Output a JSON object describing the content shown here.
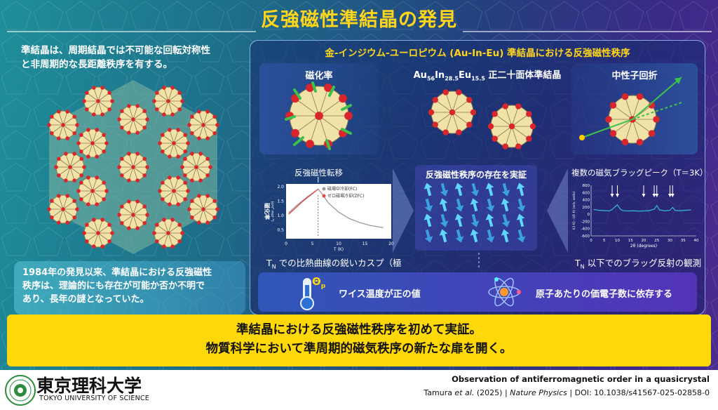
{
  "header": {
    "title": "反強磁性準結晶の発見"
  },
  "intro": {
    "text_line1": "準結晶は、周期結晶では不可能な回転対称性",
    "text_line2": "と非周期的な長距離秩序を有する。"
  },
  "history": {
    "line1": "1984年の発見以来、準結晶における反強磁性",
    "line2": "秩序は、理論的にも存在が可能か否か不明で",
    "line3": "あり、長年の謎となっていた。"
  },
  "panel": {
    "title": "金-インジウム-ユーロピウム (Au-In-Eu) 準結晶における反強磁性秩序",
    "left_label": "磁化率",
    "right_label": "中性子回折",
    "formula": {
      "au": "Au",
      "au_sub": "56",
      "in": "In",
      "in_sub": "28.5",
      "eu": "Eu",
      "eu_sub": "15.5",
      "rest": " 正二十面体準結晶"
    },
    "transition_label": "反強磁性転移",
    "center_title": "反強磁性秩序の存在を実証",
    "bragg_label": "複数の磁気ブラッグピーク（T＝3K）",
    "caption_left": "での比熱曲線の鋭いカスプ（極大）",
    "caption_right": "以下でのブラッグ反射の観測",
    "tn": "T",
    "tn_sub": "N",
    "theta": "Θ",
    "theta_sub": "p"
  },
  "facts": {
    "weiss": "ワイス温度が正の値",
    "electrons": "原子あたりの価電子数に依存する"
  },
  "conclusion": {
    "line1": "準結晶における反強磁性秩序を初めて実証。",
    "line2": "物質科学において準周期的磁気秩序の新たな扉を開く。"
  },
  "footer": {
    "univ_jp": "東京理科大学",
    "univ_en": "TOKYO UNIVERSITY OF SCIENCE",
    "paper_title": "Observation of antiferromagnetic order in a quasicrystal",
    "authors": "Tamura",
    "etal": " et al.",
    "year": " (2025)  |  ",
    "journal": "Nature Physics",
    "doi": "  |  DOI: 10.1038/s41567-025-02858-0"
  },
  "chart_data": [
    {
      "type": "line",
      "ylabel": "磁化率",
      "yunits": "(cm³ mol⁻¹)",
      "xlabel": "T (K)",
      "x_ticks": [
        0,
        5,
        10,
        15,
        20
      ],
      "y_ticks": [
        0.5,
        1.0,
        1.5,
        2.0
      ],
      "xlim": [
        0,
        20
      ],
      "ylim": [
        0.2,
        2.1
      ],
      "series": [
        {
          "name": "磁場中冷却(FC)",
          "color": "#9a9a9a",
          "x": [
            0.5,
            2,
            3,
            4,
            5,
            6.1,
            7,
            8,
            10,
            12,
            14,
            16,
            18.5
          ],
          "y": [
            1.1,
            1.35,
            1.5,
            1.65,
            1.78,
            1.92,
            1.72,
            1.45,
            1.12,
            0.9,
            0.76,
            0.66,
            0.58
          ]
        },
        {
          "name": "ゼロ磁場冷却(ZFC)",
          "color": "#e04a4a",
          "x": [
            0.5,
            2,
            3,
            4,
            5,
            6.1
          ],
          "y": [
            1.05,
            1.3,
            1.47,
            1.62,
            1.76,
            1.92
          ]
        }
      ]
    },
    {
      "type": "line",
      "ylabel": "I(3 K) - I(6 K) (arb. units)",
      "xlabel": "2θ (degrees)",
      "x_ticks": [
        0,
        5,
        10,
        15,
        20,
        25,
        30,
        35,
        40
      ],
      "y_ticks": [
        -600,
        -400,
        -200,
        0,
        200,
        400,
        600,
        800
      ],
      "xlim": [
        0,
        40
      ],
      "ylim": [
        -600,
        800
      ],
      "series": [
        {
          "name": "",
          "color": "#35b9d8",
          "x": [
            1,
            3,
            5,
            7,
            8,
            9,
            10,
            11,
            12,
            14,
            16,
            18,
            20,
            22,
            24,
            25,
            26,
            28,
            30,
            31,
            32,
            34,
            36,
            38
          ],
          "y": [
            130,
            110,
            100,
            95,
            130,
            200,
            260,
            150,
            100,
            90,
            95,
            88,
            90,
            100,
            140,
            240,
            120,
            95,
            110,
            190,
            105,
            98,
            110,
            120
          ]
        }
      ]
    }
  ]
}
